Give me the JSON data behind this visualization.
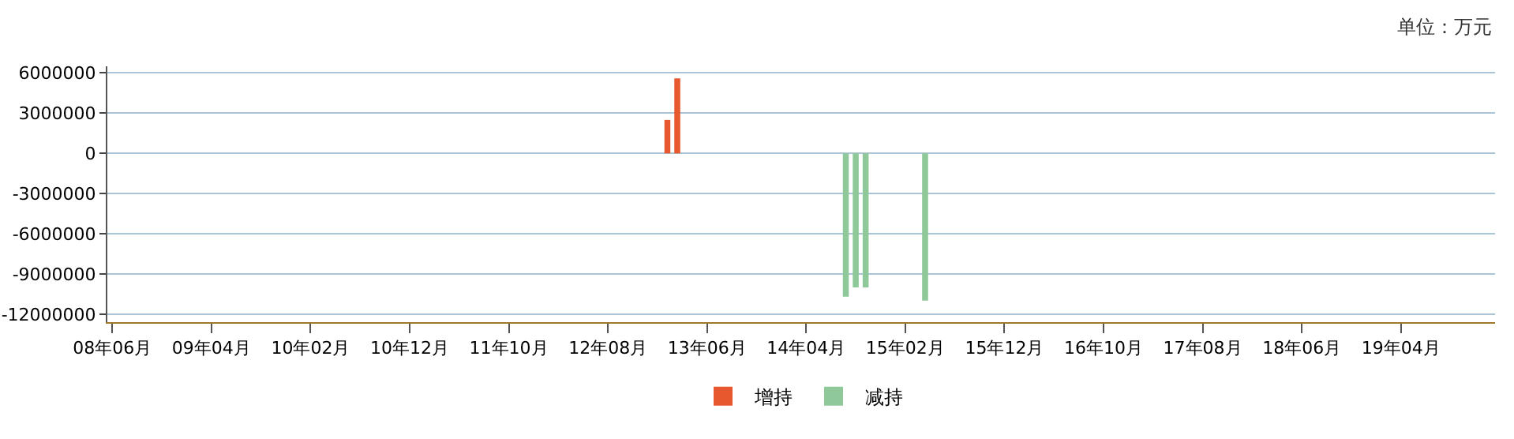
{
  "chart_data": {
    "type": "bar",
    "annotations": [
      "单位：万元"
    ],
    "categories": [
      "08年06月",
      null,
      null,
      null,
      null,
      null,
      null,
      null,
      null,
      null,
      "09年04月",
      null,
      null,
      null,
      null,
      null,
      null,
      null,
      null,
      null,
      "10年02月",
      null,
      null,
      null,
      null,
      null,
      null,
      null,
      null,
      null,
      "10年12月",
      null,
      null,
      null,
      null,
      null,
      null,
      null,
      null,
      null,
      "11年10月",
      null,
      null,
      null,
      null,
      null,
      null,
      null,
      null,
      null,
      "12年08月",
      null,
      null,
      null,
      null,
      null,
      null,
      null,
      null,
      null,
      "13年06月",
      null,
      null,
      null,
      null,
      null,
      null,
      null,
      null,
      null,
      "14年04月",
      null,
      null,
      null,
      null,
      null,
      null,
      null,
      null,
      null,
      "15年02月",
      null,
      null,
      null,
      null,
      null,
      null,
      null,
      null,
      null,
      "15年12月",
      null,
      null,
      null,
      null,
      null,
      null,
      null,
      null,
      null,
      "16年10月",
      null,
      null,
      null,
      null,
      null,
      null,
      null,
      null,
      null,
      "17年08月",
      null,
      null,
      null,
      null,
      null,
      null,
      null,
      null,
      null,
      "18年06月",
      null,
      null,
      null,
      null,
      null,
      null,
      null,
      null,
      null,
      "19年04月",
      null,
      null,
      null,
      null,
      null,
      null,
      null,
      null,
      null
    ],
    "series": [
      {
        "name": "增持",
        "color": "#e8582e",
        "values": [
          null,
          null,
          null,
          null,
          null,
          null,
          null,
          null,
          null,
          null,
          null,
          null,
          null,
          null,
          null,
          null,
          null,
          null,
          null,
          null,
          null,
          null,
          null,
          null,
          null,
          null,
          null,
          null,
          null,
          null,
          null,
          null,
          null,
          null,
          null,
          null,
          null,
          null,
          null,
          null,
          null,
          null,
          null,
          null,
          null,
          null,
          null,
          null,
          null,
          null,
          null,
          null,
          null,
          null,
          null,
          null,
          2500000,
          5600000,
          null,
          null,
          null,
          null,
          null,
          null,
          null,
          null,
          null,
          null,
          null,
          null,
          null,
          null,
          null,
          null,
          null,
          null,
          null,
          null,
          null,
          null,
          null,
          null,
          null,
          null,
          null,
          null,
          null,
          null,
          null,
          null,
          null,
          null,
          null,
          null,
          null,
          null,
          null,
          null,
          null,
          null,
          null,
          null,
          null,
          null,
          null,
          null,
          null,
          null,
          null,
          null,
          null,
          null,
          null,
          null,
          null,
          null,
          null,
          null,
          null,
          null,
          null,
          null,
          null,
          null,
          null,
          null,
          null,
          null,
          null,
          null,
          null,
          null,
          null,
          null,
          null,
          null,
          null,
          null,
          null,
          null
        ]
      },
      {
        "name": "减持",
        "color": "#8fc99a",
        "values": [
          null,
          null,
          null,
          null,
          null,
          null,
          null,
          null,
          null,
          null,
          null,
          null,
          null,
          null,
          null,
          null,
          null,
          null,
          null,
          null,
          null,
          null,
          null,
          null,
          null,
          null,
          null,
          null,
          null,
          null,
          null,
          null,
          null,
          null,
          null,
          null,
          null,
          null,
          null,
          null,
          null,
          null,
          null,
          null,
          null,
          null,
          null,
          null,
          null,
          null,
          null,
          null,
          null,
          null,
          null,
          null,
          null,
          null,
          null,
          null,
          null,
          null,
          null,
          null,
          null,
          null,
          null,
          null,
          null,
          null,
          null,
          null,
          null,
          null,
          -10700000,
          -10000000,
          -10000000,
          null,
          null,
          null,
          null,
          null,
          -11000000,
          null,
          null,
          null,
          null,
          null,
          null,
          null,
          null,
          null,
          null,
          null,
          null,
          null,
          null,
          null,
          null,
          null,
          null,
          null,
          null,
          null,
          null,
          null,
          null,
          null,
          null,
          null,
          null,
          null,
          null,
          null,
          null,
          null,
          null,
          null,
          null,
          null,
          null,
          null,
          null,
          null,
          null,
          null,
          null,
          null,
          null,
          null,
          null,
          null,
          null,
          null,
          null,
          null,
          null,
          null,
          null,
          null
        ]
      }
    ],
    "ylim": [
      -12600000,
      6500000
    ],
    "yticks": [
      6000000,
      3000000,
      0,
      -3000000,
      -6000000,
      -9000000,
      -12000000
    ],
    "grid": "y",
    "legend": "bottom"
  }
}
